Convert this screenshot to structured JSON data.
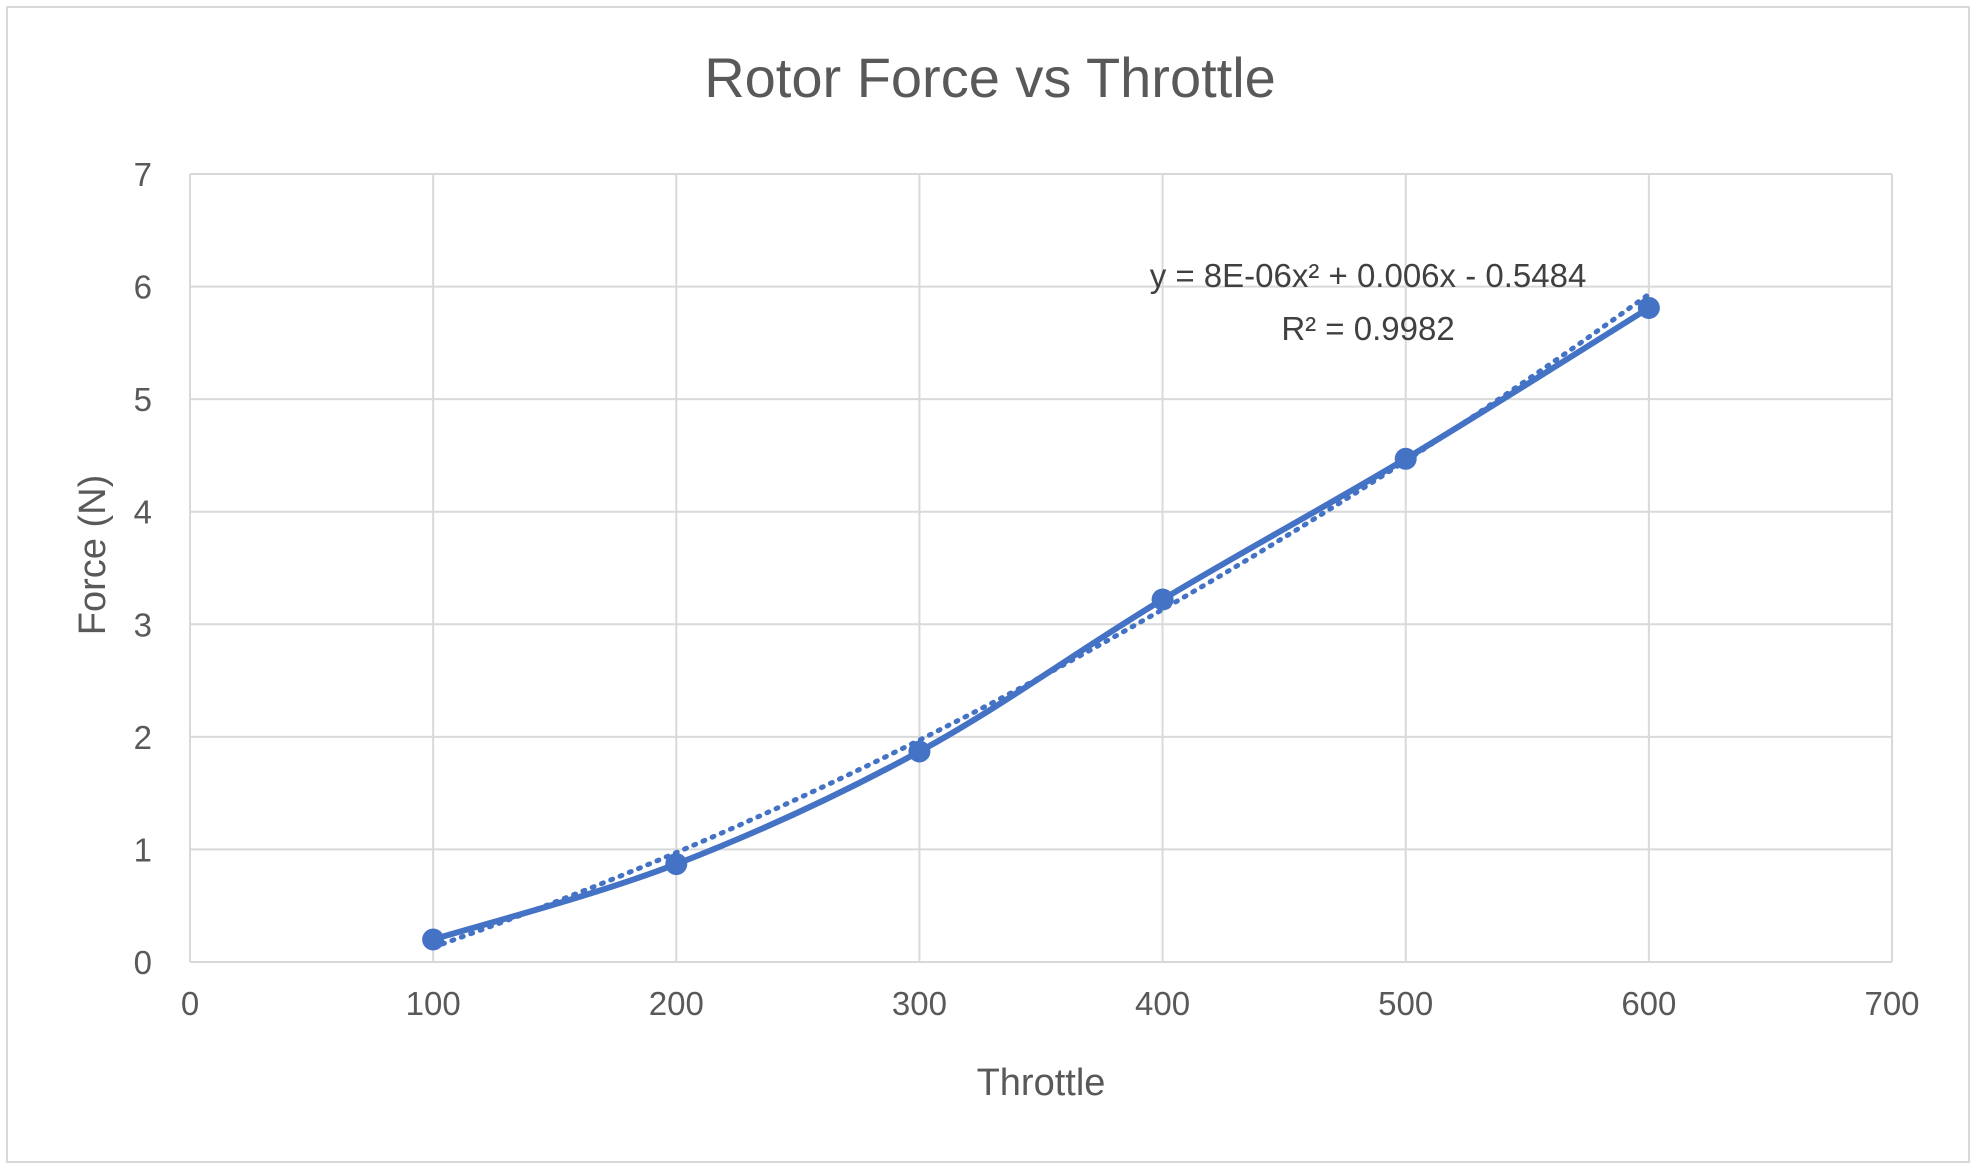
{
  "chart_data": {
    "type": "scatter",
    "title": "Rotor Force vs Throttle",
    "xlabel": "Throttle",
    "ylabel": "Force (N)",
    "xlim": [
      0,
      700
    ],
    "ylim": [
      0,
      7
    ],
    "x_ticks": [
      "0",
      "100",
      "200",
      "300",
      "400",
      "500",
      "600",
      "700"
    ],
    "y_ticks": [
      "0",
      "1",
      "2",
      "3",
      "4",
      "5",
      "6",
      "7"
    ],
    "grid": true,
    "series": [
      {
        "x": [
          100,
          200,
          300,
          400,
          500,
          600
        ],
        "y": [
          0.2,
          0.87,
          1.87,
          3.22,
          4.47,
          5.81
        ],
        "line": "smooth",
        "marker": "circle",
        "color": "#4472c4"
      }
    ],
    "trendline": {
      "type": "polynomial",
      "order": 2,
      "style": "dotted",
      "color": "#4472c4",
      "coefficients": [
        8e-06,
        0.006,
        -0.5484
      ],
      "x_range": [
        100,
        600
      ],
      "equation_label": "y = 8E-06x² + 0.006x - 0.5484",
      "r2_label": "R² = 0.9982"
    },
    "colors": {
      "series": "#4472c4",
      "grid": "#d9d9d9",
      "text": "#595959"
    }
  }
}
